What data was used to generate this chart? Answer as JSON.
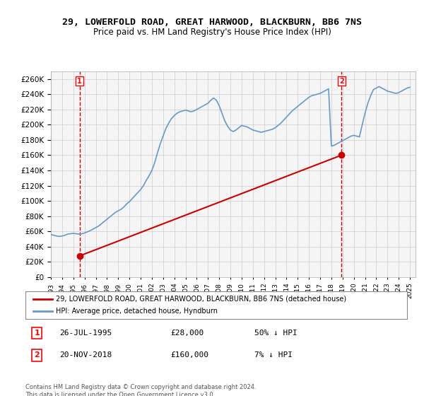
{
  "title": "29, LOWERFOLD ROAD, GREAT HARWOOD, BLACKBURN, BB6 7NS",
  "subtitle": "Price paid vs. HM Land Registry's House Price Index (HPI)",
  "ylabel_ticks": [
    0,
    20000,
    40000,
    60000,
    80000,
    100000,
    120000,
    140000,
    160000,
    180000,
    200000,
    220000,
    240000,
    260000
  ],
  "ylim": [
    0,
    270000
  ],
  "sale1_date": 1995.57,
  "sale1_price": 28000,
  "sale1_label": "1",
  "sale1_annotation": "26-JUL-1995   £28,000   50% ↓ HPI",
  "sale2_date": 2018.9,
  "sale2_price": 160000,
  "sale2_label": "2",
  "sale2_annotation": "20-NOV-2018   £160,000   7% ↓ HPI",
  "hpi_line_color": "#6699cc",
  "price_line_color": "#cc0000",
  "vline_color": "#cc0000",
  "legend_line1": "29, LOWERFOLD ROAD, GREAT HARWOOD, BLACKBURN, BB6 7NS (detached house)",
  "legend_line2": "HPI: Average price, detached house, Hyndburn",
  "footer": "Contains HM Land Registry data © Crown copyright and database right 2024.\nThis data is licensed under the Open Government Licence v3.0.",
  "background_color": "#ffffff",
  "grid_color": "#cccccc",
  "hpi_data": {
    "years": [
      1993.0,
      1993.25,
      1993.5,
      1993.75,
      1994.0,
      1994.25,
      1994.5,
      1994.75,
      1995.0,
      1995.25,
      1995.5,
      1995.75,
      1996.0,
      1996.25,
      1996.5,
      1996.75,
      1997.0,
      1997.25,
      1997.5,
      1997.75,
      1998.0,
      1998.25,
      1998.5,
      1998.75,
      1999.0,
      1999.25,
      1999.5,
      1999.75,
      2000.0,
      2000.25,
      2000.5,
      2000.75,
      2001.0,
      2001.25,
      2001.5,
      2001.75,
      2002.0,
      2002.25,
      2002.5,
      2002.75,
      2003.0,
      2003.25,
      2003.5,
      2003.75,
      2004.0,
      2004.25,
      2004.5,
      2004.75,
      2005.0,
      2005.25,
      2005.5,
      2005.75,
      2006.0,
      2006.25,
      2006.5,
      2006.75,
      2007.0,
      2007.25,
      2007.5,
      2007.75,
      2008.0,
      2008.25,
      2008.5,
      2008.75,
      2009.0,
      2009.25,
      2009.5,
      2009.75,
      2010.0,
      2010.25,
      2010.5,
      2010.75,
      2011.0,
      2011.25,
      2011.5,
      2011.75,
      2012.0,
      2012.25,
      2012.5,
      2012.75,
      2013.0,
      2013.25,
      2013.5,
      2013.75,
      2014.0,
      2014.25,
      2014.5,
      2014.75,
      2015.0,
      2015.25,
      2015.5,
      2015.75,
      2016.0,
      2016.25,
      2016.5,
      2016.75,
      2017.0,
      2017.25,
      2017.5,
      2017.75,
      2018.0,
      2018.25,
      2018.5,
      2018.75,
      2019.0,
      2019.25,
      2019.5,
      2019.75,
      2020.0,
      2020.25,
      2020.5,
      2020.75,
      2021.0,
      2021.25,
      2021.5,
      2021.75,
      2022.0,
      2022.25,
      2022.5,
      2022.75,
      2023.0,
      2023.25,
      2023.5,
      2023.75,
      2024.0,
      2024.25,
      2024.5,
      2024.75,
      2025.0
    ],
    "values": [
      56000,
      55000,
      54000,
      53500,
      54000,
      55000,
      56500,
      57000,
      57500,
      57000,
      56500,
      57000,
      58000,
      59500,
      61000,
      63000,
      65000,
      67000,
      70000,
      73000,
      76000,
      79000,
      82000,
      85000,
      87000,
      89000,
      92000,
      96000,
      99000,
      103000,
      107000,
      111000,
      115000,
      120000,
      127000,
      133000,
      140000,
      150000,
      163000,
      175000,
      185000,
      195000,
      202000,
      208000,
      212000,
      215000,
      217000,
      218000,
      219000,
      218000,
      217000,
      218000,
      220000,
      222000,
      224000,
      226000,
      228000,
      232000,
      235000,
      232000,
      225000,
      215000,
      205000,
      198000,
      193000,
      191000,
      193000,
      196000,
      199000,
      198000,
      197000,
      195000,
      193000,
      192000,
      191000,
      190000,
      191000,
      192000,
      193000,
      194000,
      196000,
      199000,
      202000,
      206000,
      210000,
      214000,
      218000,
      221000,
      224000,
      227000,
      230000,
      233000,
      236000,
      238000,
      239000,
      240000,
      241000,
      243000,
      245000,
      247000,
      172000,
      173000,
      175000,
      177000,
      179000,
      181000,
      183000,
      185000,
      186000,
      185000,
      184000,
      200000,
      215000,
      228000,
      238000,
      246000,
      248000,
      250000,
      248000,
      246000,
      244000,
      243000,
      242000,
      241000,
      242000,
      244000,
      246000,
      248000,
      249000
    ]
  },
  "price_paid_data": {
    "years": [
      1995.57,
      2018.9
    ],
    "values": [
      28000,
      160000
    ]
  },
  "xtick_years": [
    1993,
    1994,
    1995,
    1996,
    1997,
    1998,
    1999,
    2000,
    2001,
    2002,
    2003,
    2004,
    2005,
    2006,
    2007,
    2008,
    2009,
    2010,
    2011,
    2012,
    2013,
    2014,
    2015,
    2016,
    2017,
    2018,
    2019,
    2020,
    2021,
    2022,
    2023,
    2024,
    2025
  ]
}
